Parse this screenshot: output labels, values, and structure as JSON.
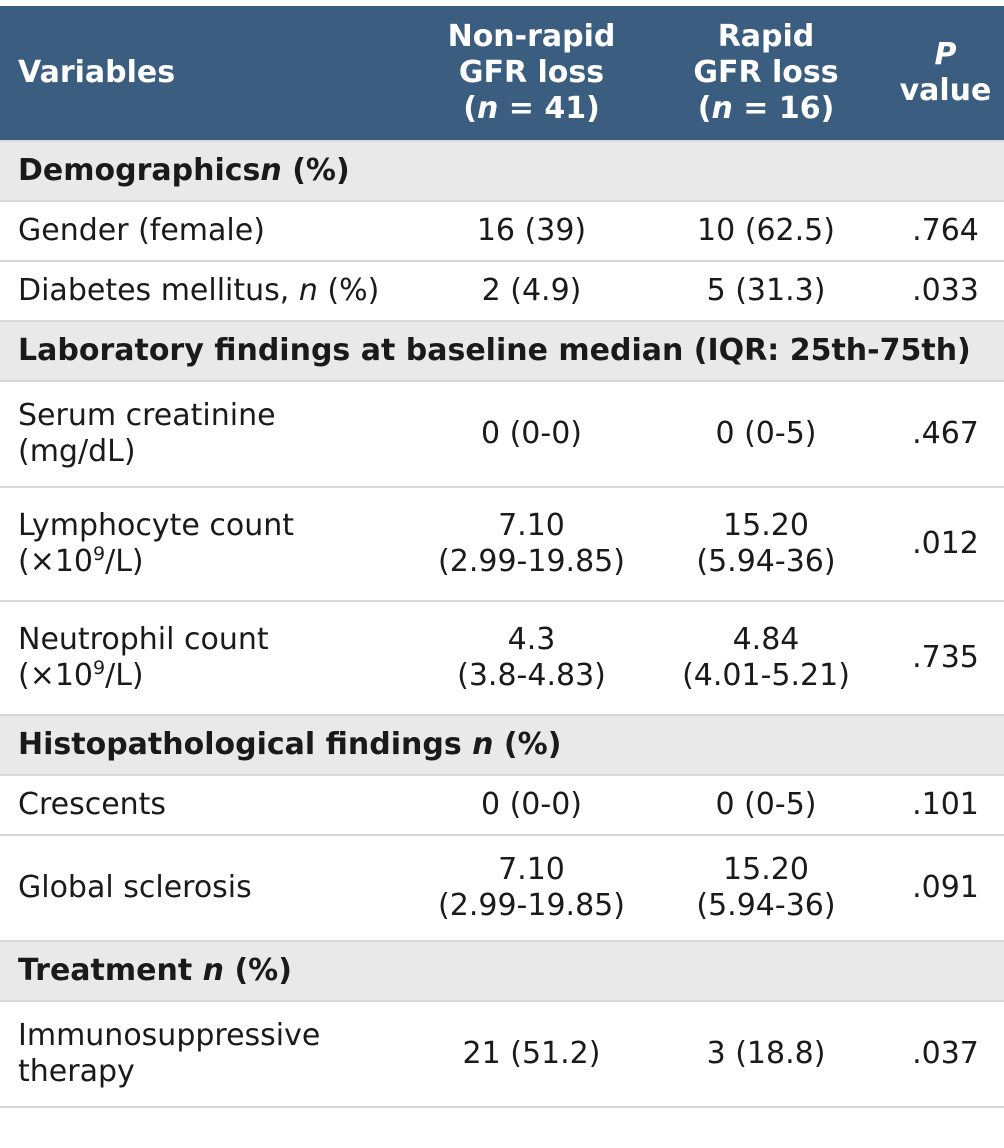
{
  "header": {
    "variables": "Variables",
    "col2": [
      "Non-rapid",
      "GFR loss",
      "(",
      "n",
      " = 41)"
    ],
    "col3": [
      "Rapid",
      "GFR loss",
      "(",
      "n",
      " = 16)"
    ],
    "col4": [
      "P",
      "value"
    ]
  },
  "sections": {
    "demographics": {
      "a": "Demographics",
      "b": "n",
      "c": " (%)"
    },
    "laboratory": {
      "a": "Laboratory findings at baseline median (IQR: 25th-75th)"
    },
    "histo": {
      "a": "Histopathological findings ",
      "b": "n",
      "c": " (%)"
    },
    "treatment": {
      "a": "Treatment ",
      "b": "n",
      "c": " (%)"
    }
  },
  "rows": {
    "gender": {
      "label": "Gender (female)",
      "c2": "16 (39)",
      "c3": "10 (62.5)",
      "p": ".764"
    },
    "diabetes": {
      "label_a": "Diabetes mellitus, ",
      "label_b": "n",
      "label_c": " (%)",
      "c2": "2 (4.9)",
      "c3": "5 (31.3)",
      "p": ".033"
    },
    "creatinine": {
      "label_1": "Serum creatinine",
      "label_2": "(mg/dL)",
      "c2": "0 (0-0)",
      "c3": "0 (0-5)",
      "p": ".467"
    },
    "lymphocyte": {
      "label_1": "Lymphocyte count",
      "label_2a": "(×10",
      "label_2sup": "9",
      "label_2b": "/L)",
      "c2_1": "7.10",
      "c2_2": "(2.99-19.85)",
      "c3_1": "15.20",
      "c3_2": "(5.94-36)",
      "p": ".012"
    },
    "neutrophil": {
      "label_1": "Neutrophil count",
      "label_2a": "(×10",
      "label_2sup": "9",
      "label_2b": "/L)",
      "c2_1": "4.3",
      "c2_2": "(3.8-4.83)",
      "c3_1": "4.84",
      "c3_2": "(4.01-5.21)",
      "p": ".735"
    },
    "crescents": {
      "label": "Crescents",
      "c2": "0 (0-0)",
      "c3": "0 (0-5)",
      "p": ".101"
    },
    "sclerosis": {
      "label": "Global sclerosis",
      "c2_1": "7.10",
      "c2_2": "(2.99-19.85)",
      "c3_1": "15.20",
      "c3_2": "(5.94-36)",
      "p": ".091"
    },
    "immuno": {
      "label_1": "Immunosuppressive",
      "label_2": "therapy",
      "c2": "21 (51.2)",
      "c3": "3 (18.8)",
      "p": ".037"
    }
  },
  "colors": {
    "header_bg": "#3b5e80",
    "section_bg": "#e9e9e9",
    "rule": "#d8d8d8"
  }
}
